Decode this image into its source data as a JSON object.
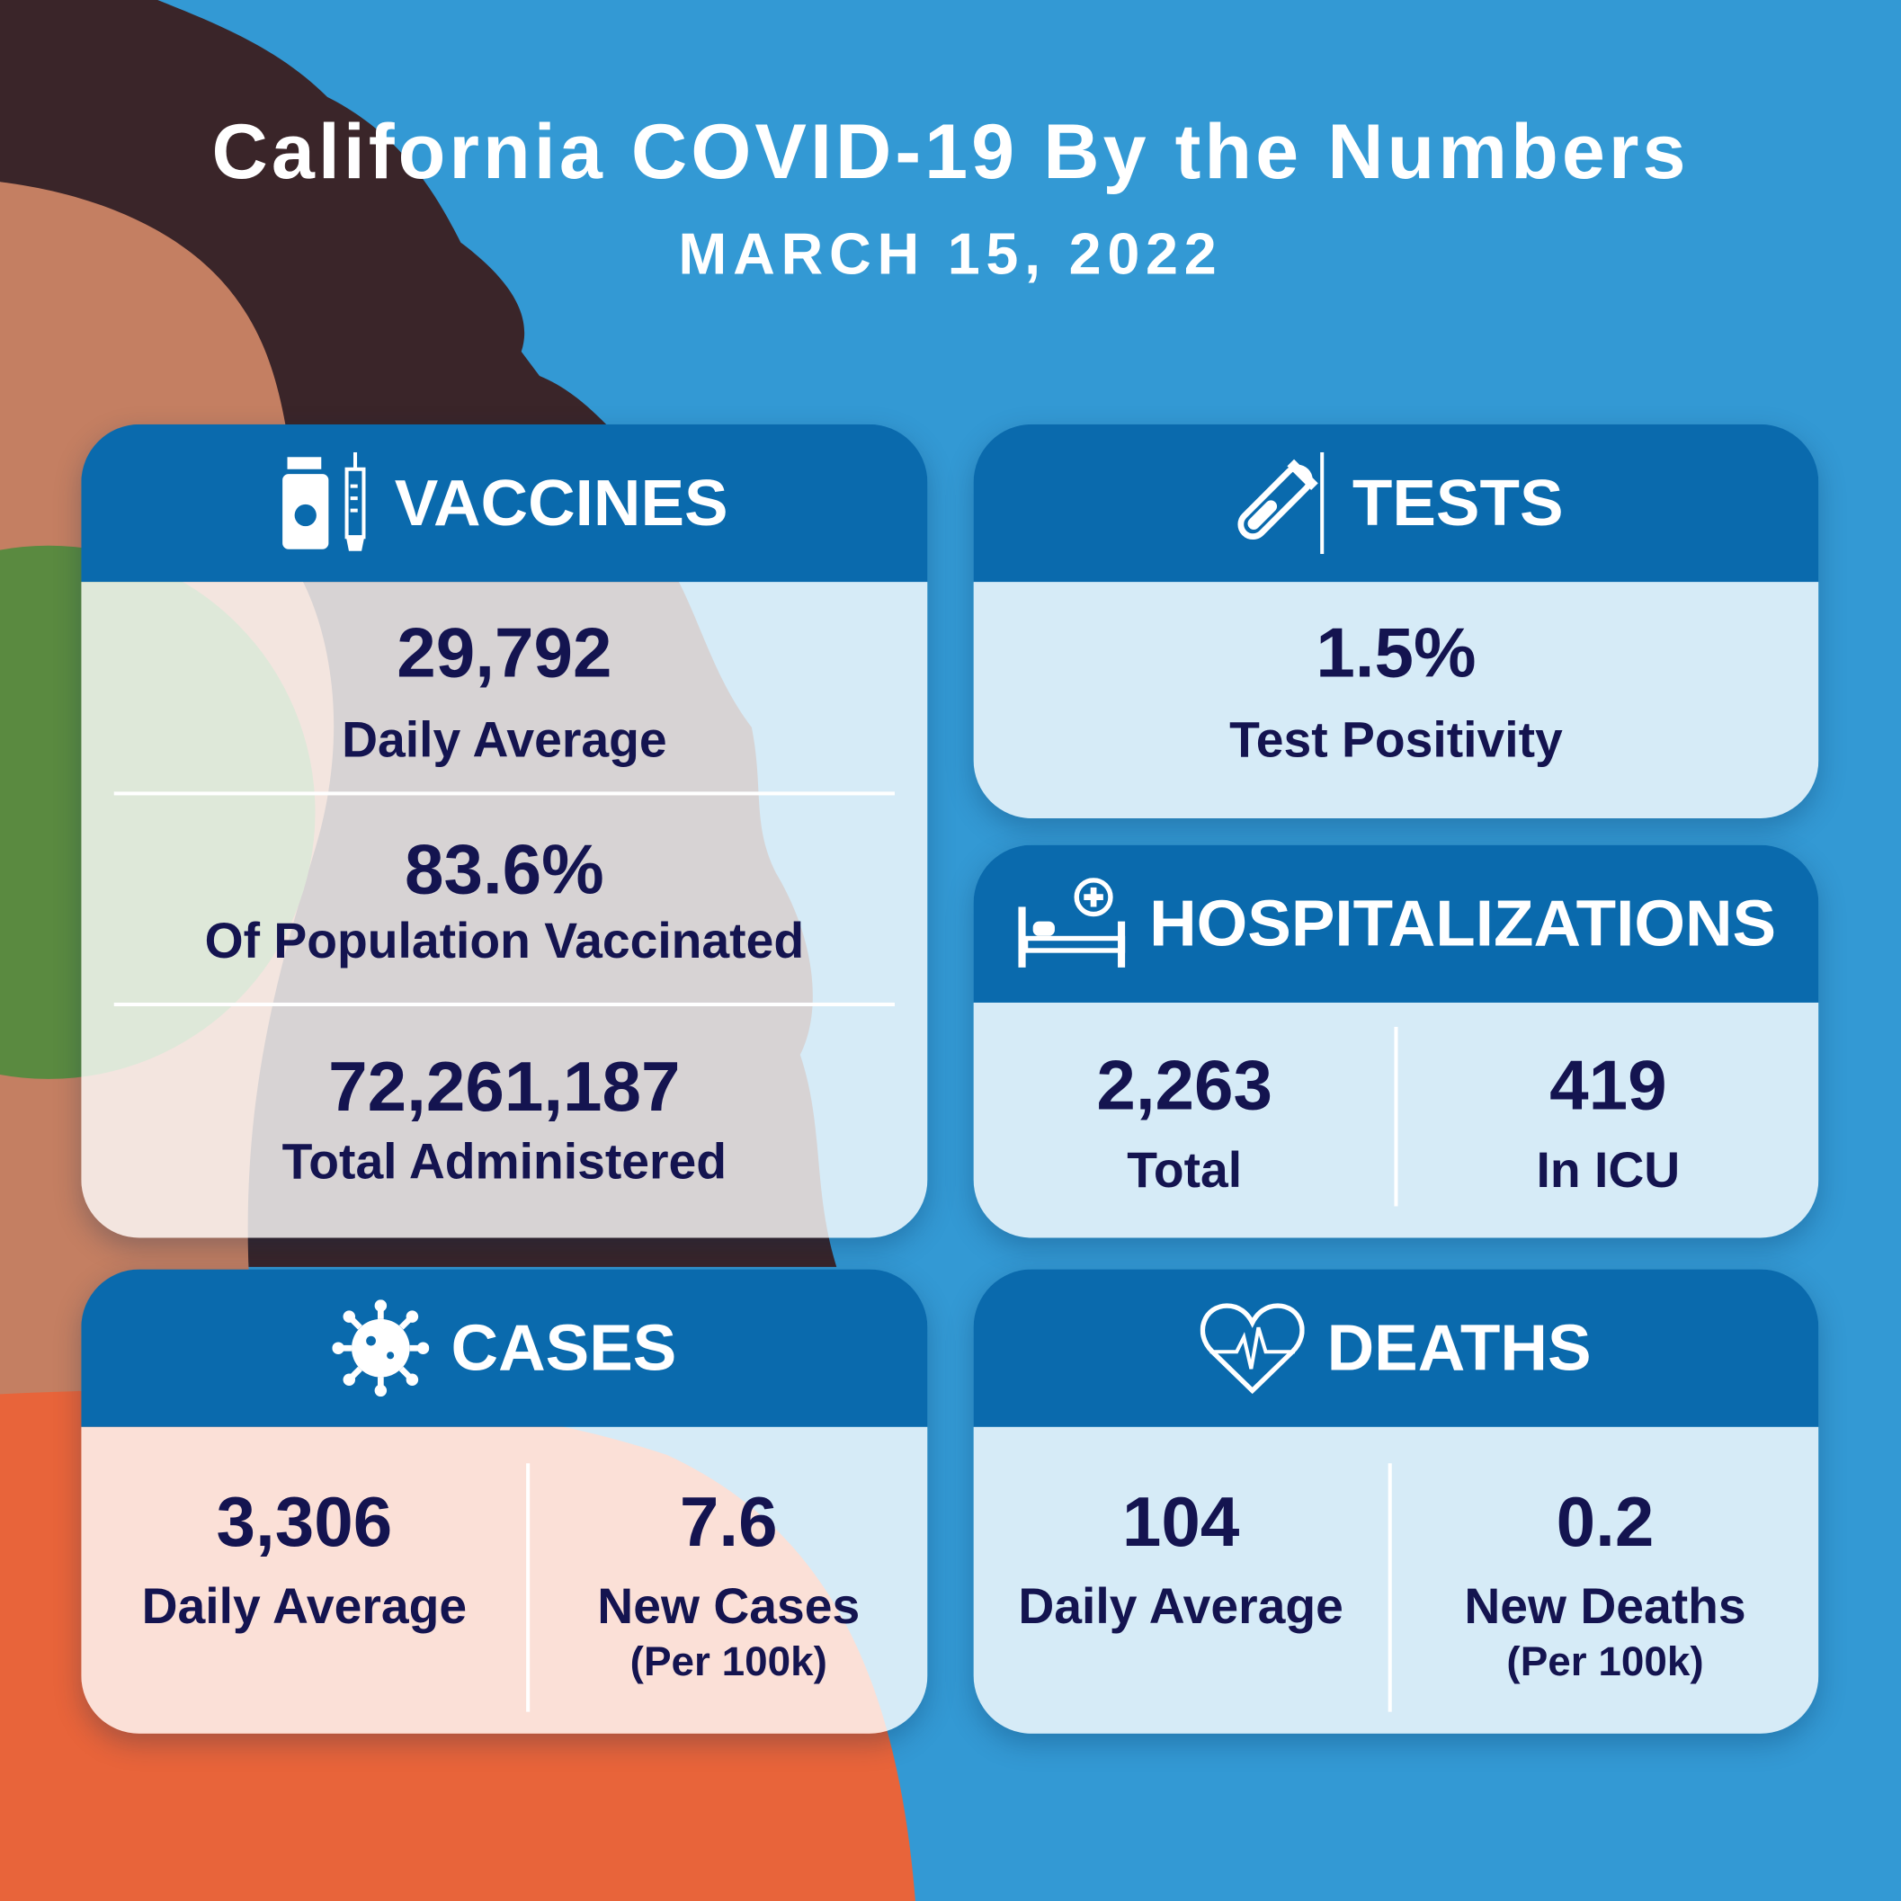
{
  "title": "California COVID-19 By the Numbers",
  "date": "MARCH 15, 2022",
  "colors": {
    "background": "#3399d4",
    "header": "#0a6aad",
    "text": "#141450"
  },
  "vaccines": {
    "heading": "VACCINES",
    "icon": "vaccine-vial-syringe-icon",
    "stats": [
      {
        "value": "29,792",
        "label": "Daily Average"
      },
      {
        "value": "83.6%",
        "label": "Of Population Vaccinated"
      },
      {
        "value": "72,261,187",
        "label": "Total Administered"
      }
    ]
  },
  "tests": {
    "heading": "TESTS",
    "icon": "test-tube-swab-icon",
    "value": "1.5%",
    "label": "Test Positivity"
  },
  "hospitalizations": {
    "heading": "HOSPITALIZATIONS",
    "icon": "hospital-bed-icon",
    "stats": [
      {
        "value": "2,263",
        "label": "Total"
      },
      {
        "value": "419",
        "label": "In ICU"
      }
    ]
  },
  "cases": {
    "heading": "CASES",
    "icon": "virus-icon",
    "stats": [
      {
        "value": "3,306",
        "label": "Daily Average",
        "sub": ""
      },
      {
        "value": "7.6",
        "label": "New Cases",
        "sub": "(Per 100k)"
      }
    ]
  },
  "deaths": {
    "heading": "DEATHS",
    "icon": "heart-pulse-icon",
    "stats": [
      {
        "value": "104",
        "label": "Daily Average",
        "sub": ""
      },
      {
        "value": "0.2",
        "label": "New Deaths",
        "sub": "(Per 100k)"
      }
    ]
  }
}
